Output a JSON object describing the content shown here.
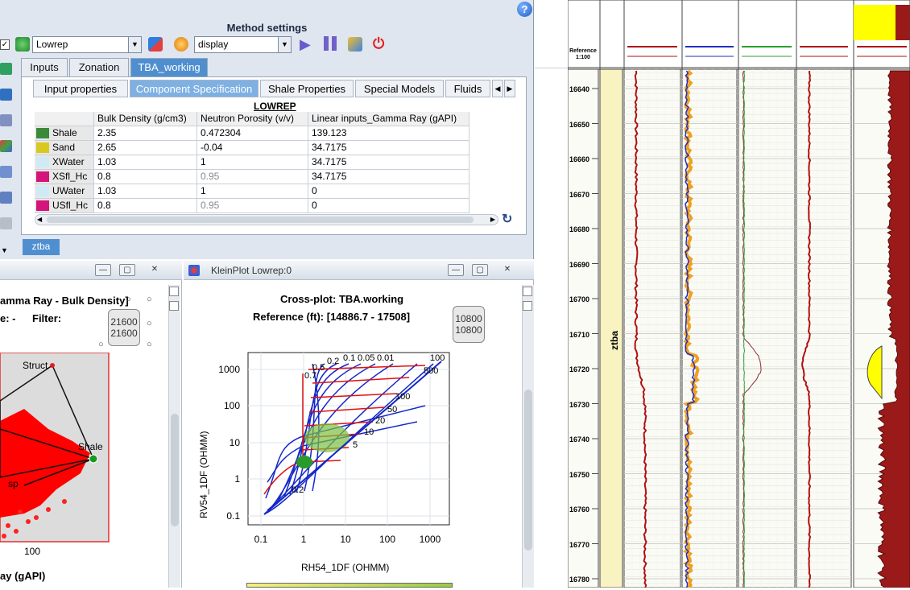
{
  "method_window": {
    "title": "Method settings",
    "help_label": "?",
    "checkbox": "✓",
    "model_combo": "Lowrep",
    "display_combo": "display",
    "tabs": [
      {
        "label": "Inputs",
        "active": false
      },
      {
        "label": "Zonation",
        "active": false
      },
      {
        "label": "TBA_working",
        "active": true
      }
    ],
    "subtabs": [
      {
        "label": "Input properties",
        "active": false
      },
      {
        "label": "Component Specification",
        "active": true
      },
      {
        "label": "Shale Properties",
        "active": false
      },
      {
        "label": "Special Models",
        "active": false
      },
      {
        "label": "Fluids",
        "active": false
      }
    ],
    "table": {
      "title": "LOWREP",
      "columns": [
        "Bulk Density (g/cm3)",
        "Neutron Porosity (v/v)",
        "Linear inputs_Gamma Ray (gAPI)"
      ],
      "rows": [
        {
          "name": "Shale",
          "color": "#3a8a3a",
          "values": [
            "2.35",
            "0.472304",
            "139.123"
          ],
          "grey": [
            false,
            false,
            false
          ]
        },
        {
          "name": "Sand",
          "color": "#d8c820",
          "values": [
            "2.65",
            "-0.04",
            "34.7175"
          ],
          "grey": [
            false,
            false,
            false
          ]
        },
        {
          "name": "XWater",
          "color": "#cfeaf5",
          "values": [
            "1.03",
            "1",
            "34.7175"
          ],
          "grey": [
            false,
            false,
            false
          ]
        },
        {
          "name": "XSfl_Hc",
          "color": "#d4147a",
          "values": [
            "0.8",
            "0.95",
            "34.7175"
          ],
          "grey": [
            false,
            true,
            false
          ]
        },
        {
          "name": "UWater",
          "color": "#cfeaf5",
          "values": [
            "1.03",
            "1",
            "0"
          ],
          "grey": [
            false,
            false,
            false
          ]
        },
        {
          "name": "USfl_Hc",
          "color": "#d4147a",
          "values": [
            "0.8",
            "0.95",
            "0"
          ],
          "grey": [
            false,
            true,
            false
          ]
        }
      ]
    },
    "bottom_tab": "ztba"
  },
  "left_plot": {
    "title": "amma Ray - Bulk Density]",
    "filter_line_prefix": "e:  -",
    "filter_label": "Filter:",
    "spin_top": "21600",
    "spin_bottom": "21600",
    "struct_label": "Struct",
    "shale_label": "Shale",
    "sp_label": "sp",
    "x_tick": "100",
    "x_axis_label": "ay (gAPI)"
  },
  "klein_plot": {
    "window_title": "KleinPlot Lowrep:0",
    "title": "Cross-plot: TBA.working",
    "reference": "Reference (ft): [14886.7 - 17508]",
    "spin_top": "10800",
    "spin_bottom": "10800",
    "y_label": "RV54_1DF (OHMM)",
    "x_label": "RH54_1DF (OHMM)",
    "y_ticks": [
      "1000",
      "100",
      "10",
      "1",
      "0.1"
    ],
    "x_ticks": [
      "0.1",
      "1",
      "10",
      "100",
      "1000"
    ],
    "curve_labels": [
      "0.1",
      "0.05",
      "0.01",
      "0.7",
      "0.2",
      "0.5",
      "500",
      "100",
      "50",
      "20",
      "10",
      "5",
      "0.2",
      "100"
    ]
  },
  "log_view": {
    "zone_label": "ztba",
    "depth_label": "Reference",
    "depth_unit": "1:100",
    "depths": [
      "16640",
      "16650",
      "16660",
      "16670",
      "16680",
      "16690",
      "16700",
      "16710",
      "16720",
      "16730",
      "16740",
      "16750",
      "16760",
      "16770",
      "16780"
    ],
    "colors": {
      "track_bg": "#fbfbf6",
      "zone": "#f8f3c0",
      "red": "#b01010",
      "orange": "#f0a020",
      "blue": "#2030c0",
      "fill": "#9a1a1a",
      "yellow": "#ffff00"
    }
  }
}
